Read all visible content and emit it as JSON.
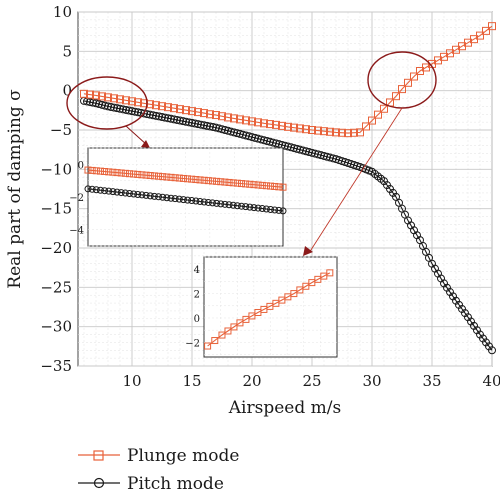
{
  "chart_data": {
    "type": "line",
    "xlabel": "Airspeed m/s",
    "ylabel": "Real part of damping σ",
    "xlim": [
      5.5,
      40
    ],
    "ylim": [
      -35,
      10
    ],
    "xticks": [
      10,
      15,
      20,
      25,
      30,
      35,
      40
    ],
    "yticks": [
      10,
      5,
      0,
      -5,
      -10,
      -15,
      -20,
      -25,
      -30,
      -35
    ],
    "grid": true,
    "legend_position": "bottom-left-outside",
    "series": [
      {
        "name": "Plunge mode",
        "color": "#e8623a",
        "marker": "square",
        "points": [
          [
            6.0,
            -0.4
          ],
          [
            7.0,
            -0.6
          ],
          [
            8.0,
            -0.85
          ],
          [
            9.0,
            -1.1
          ],
          [
            10.0,
            -1.35
          ],
          [
            11.0,
            -1.6
          ],
          [
            12.0,
            -1.85
          ],
          [
            13.0,
            -2.1
          ],
          [
            14.0,
            -2.35
          ],
          [
            15.0,
            -2.6
          ],
          [
            16.0,
            -2.85
          ],
          [
            16.5,
            -3.0
          ],
          [
            17.0,
            -3.1
          ],
          [
            18.0,
            -3.4
          ],
          [
            19.0,
            -3.65
          ],
          [
            20.0,
            -3.9
          ],
          [
            21.0,
            -4.15
          ],
          [
            22.0,
            -4.35
          ],
          [
            23.0,
            -4.6
          ],
          [
            24.0,
            -4.8
          ],
          [
            25.0,
            -5.0
          ],
          [
            26.0,
            -5.15
          ],
          [
            27.0,
            -5.3
          ],
          [
            28.0,
            -5.4
          ],
          [
            29.0,
            -5.3
          ],
          [
            30.0,
            -3.8
          ],
          [
            31.0,
            -2.3
          ],
          [
            32.0,
            -0.7
          ],
          [
            32.5,
            0.2
          ],
          [
            33.0,
            1.0
          ],
          [
            33.5,
            1.8
          ],
          [
            34.0,
            2.5
          ],
          [
            35.0,
            3.4
          ],
          [
            36.0,
            4.3
          ],
          [
            37.0,
            5.2
          ],
          [
            38.0,
            6.1
          ],
          [
            39.0,
            7.0
          ],
          [
            40.0,
            8.2
          ]
        ]
      },
      {
        "name": "Pitch mode",
        "color": "#1a1a1a",
        "marker": "circle",
        "points": [
          [
            6.0,
            -1.3
          ],
          [
            7.0,
            -1.6
          ],
          [
            8.0,
            -2.0
          ],
          [
            9.0,
            -2.3
          ],
          [
            10.0,
            -2.6
          ],
          [
            11.0,
            -2.9
          ],
          [
            12.0,
            -3.2
          ],
          [
            13.0,
            -3.5
          ],
          [
            14.0,
            -3.8
          ],
          [
            15.0,
            -4.1
          ],
          [
            16.0,
            -4.4
          ],
          [
            17.0,
            -4.7
          ],
          [
            18.0,
            -5.1
          ],
          [
            19.0,
            -5.5
          ],
          [
            20.0,
            -5.9
          ],
          [
            21.0,
            -6.3
          ],
          [
            22.0,
            -6.7
          ],
          [
            23.0,
            -7.1
          ],
          [
            24.0,
            -7.5
          ],
          [
            25.0,
            -7.9
          ],
          [
            26.0,
            -8.3
          ],
          [
            27.0,
            -8.7
          ],
          [
            28.0,
            -9.2
          ],
          [
            29.0,
            -9.7
          ],
          [
            30.0,
            -10.3
          ],
          [
            31.0,
            -11.5
          ],
          [
            32.0,
            -13.5
          ],
          [
            33.0,
            -16.5
          ],
          [
            34.0,
            -19.0
          ],
          [
            35.0,
            -22.0
          ],
          [
            36.0,
            -24.5
          ],
          [
            37.0,
            -26.7
          ],
          [
            38.0,
            -28.8
          ],
          [
            39.0,
            -31.0
          ],
          [
            40.0,
            -33.0
          ]
        ]
      }
    ],
    "insets": [
      {
        "xlim": [
          6.2,
          10.4
        ],
        "ylim": [
          -5,
          1
        ],
        "yticks": [
          0,
          -2,
          -4
        ],
        "series": [
          {
            "points": [
              [
                6.2,
                -0.35
              ],
              [
                10.4,
                -1.4
              ]
            ]
          },
          {
            "points": [
              [
                6.2,
                -1.5
              ],
              [
                10.4,
                -2.85
              ]
            ]
          }
        ]
      },
      {
        "xlim": [
          31.5,
          35.2
        ],
        "ylim": [
          -3.2,
          5
        ],
        "yticks": [
          4,
          2,
          0,
          -2
        ],
        "series": [
          {
            "points": [
              [
                31.6,
                -2.3
              ],
              [
                32.0,
                -1.4
              ],
              [
                32.5,
                -0.4
              ],
              [
                33.0,
                0.45
              ],
              [
                33.5,
                1.2
              ],
              [
                34.0,
                2.0
              ],
              [
                34.5,
                2.9
              ],
              [
                35.0,
                3.7
              ]
            ]
          }
        ]
      }
    ]
  },
  "legend": {
    "items": [
      {
        "label": "Plunge mode",
        "color": "#e8623a",
        "marker": "square"
      },
      {
        "label": "Pitch mode",
        "color": "#1a1a1a",
        "marker": "circle"
      }
    ]
  }
}
